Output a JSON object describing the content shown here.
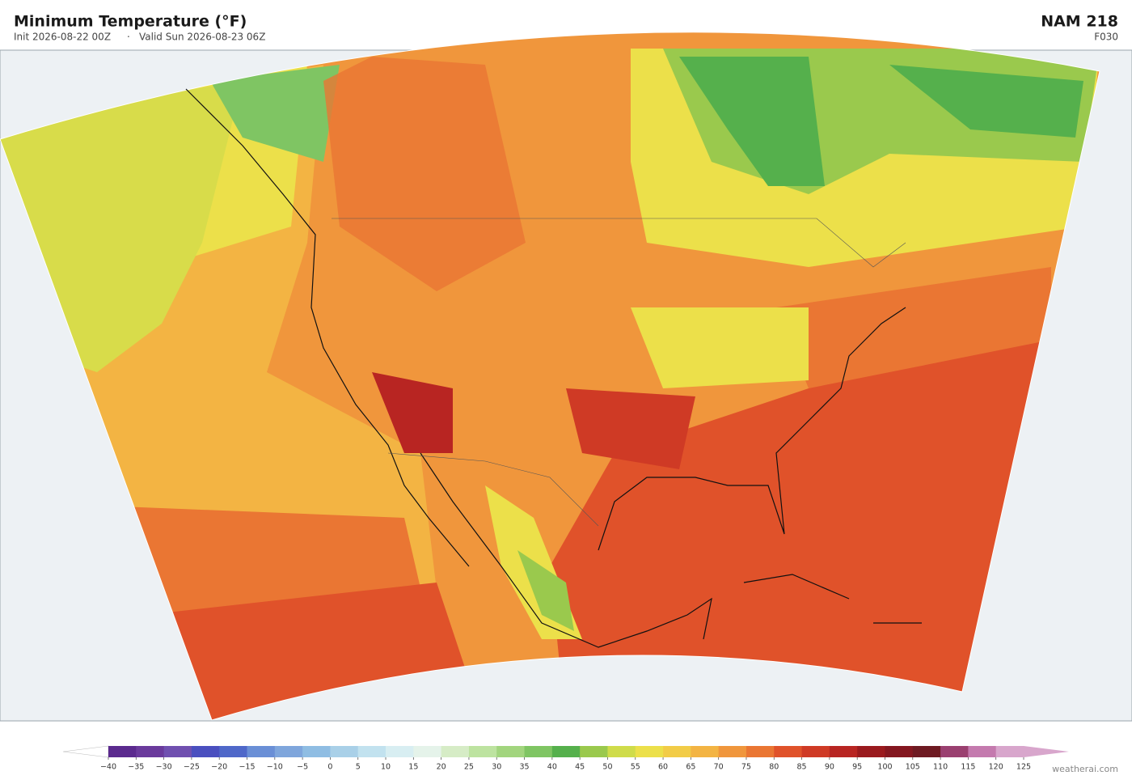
{
  "header": {
    "title": "Minimum Temperature  (°F)",
    "init": "Init 2026-08-22 00Z",
    "separator": "·",
    "valid": "Valid Sun 2026-08-23 06Z",
    "model": "NAM  218",
    "forecast": "F030"
  },
  "colorbar": {
    "ticks": [
      {
        "value": -40,
        "label": "−40"
      },
      {
        "value": -35,
        "label": "−35"
      },
      {
        "value": -30,
        "label": "−30"
      },
      {
        "value": -25,
        "label": "−25"
      },
      {
        "value": -20,
        "label": "−20"
      },
      {
        "value": -15,
        "label": "−15"
      },
      {
        "value": -10,
        "label": "−10"
      },
      {
        "value": -5,
        "label": "−5"
      },
      0,
      5,
      10,
      15,
      20,
      25,
      30,
      35,
      40,
      45,
      50,
      55,
      60,
      65,
      70,
      75,
      80,
      85,
      90,
      95,
      100,
      105,
      110,
      115,
      120,
      125
    ],
    "colors": [
      "#5b2a8e",
      "#6a3a9c",
      "#7050b0",
      "#4a4fbf",
      "#4f68c9",
      "#6a8fd6",
      "#7fa6dc",
      "#8fbde3",
      "#a9d0e8",
      "#c2e2ef",
      "#d8eef2",
      "#e5f3ea",
      "#d6ecc6",
      "#bde3a0",
      "#a2d57e",
      "#7fc563",
      "#55b04c",
      "#9ac94d",
      "#cfdc4a",
      "#ece04a",
      "#f2cc47",
      "#f3b443",
      "#f0963c",
      "#ea7633",
      "#e0522a",
      "#cf3a25",
      "#b82522",
      "#9a1a1e",
      "#841720",
      "#6e1a22",
      "#9a4070",
      "#c47aae",
      "#d8a6cc"
    ],
    "under_color": "#ffffff",
    "over_color": "#d8a6cc"
  },
  "footer": {
    "credit": "weatherai.com"
  }
}
